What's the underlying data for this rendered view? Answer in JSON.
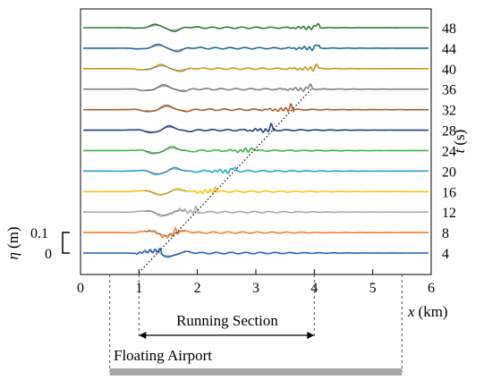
{
  "chart_data": {
    "type": "line",
    "xlabel_var": "x",
    "xlabel_unit": "(km)",
    "ylabel_var": "η",
    "ylabel_unit": "(m)",
    "right_label_var": "t",
    "right_label_unit": "(s)",
    "xlim": [
      0,
      6
    ],
    "x_ticks": [
      "0",
      "1",
      "2",
      "3",
      "4",
      "5",
      "6"
    ],
    "scale_bar_labels": [
      "0.1",
      "0"
    ],
    "series": [
      {
        "t": 4,
        "label": "4",
        "color": "#1f63c6",
        "front_x": 1.35
      },
      {
        "t": 8,
        "label": "8",
        "color": "#f07f2a",
        "front_x": 1.62
      },
      {
        "t": 12,
        "label": "12",
        "color": "#a9a9a9",
        "front_x": 1.98
      },
      {
        "t": 16,
        "label": "16",
        "color": "#f5c518",
        "front_x": 2.3
      },
      {
        "t": 20,
        "label": "20",
        "color": "#2aa0d8",
        "front_x": 2.62
      },
      {
        "t": 24,
        "label": "24",
        "color": "#3cb44b",
        "front_x": 2.95
      },
      {
        "t": 28,
        "label": "28",
        "color": "#1e3f8a",
        "front_x": 3.27
      },
      {
        "t": 32,
        "label": "32",
        "color": "#b5561e",
        "front_x": 3.6
      },
      {
        "t": 36,
        "label": "36",
        "color": "#7f7f7f",
        "front_x": 3.92
      },
      {
        "t": 40,
        "label": "40",
        "color": "#c49a1a",
        "front_x": 4.05
      },
      {
        "t": 44,
        "label": "44",
        "color": "#1b6a9a",
        "front_x": 4.05
      },
      {
        "t": 48,
        "label": "48",
        "color": "#2e7d32",
        "front_x": 4.05
      }
    ],
    "trajectory": {
      "x_start": 1.0,
      "x_end": 3.95,
      "t_start": 4,
      "t_end": 36
    },
    "running_section": {
      "label": "Running Section",
      "x_start": 1,
      "x_end": 4
    },
    "floating_airport": {
      "label": "Floating Airport",
      "x_start": 0.5,
      "x_end": 5.5
    }
  }
}
